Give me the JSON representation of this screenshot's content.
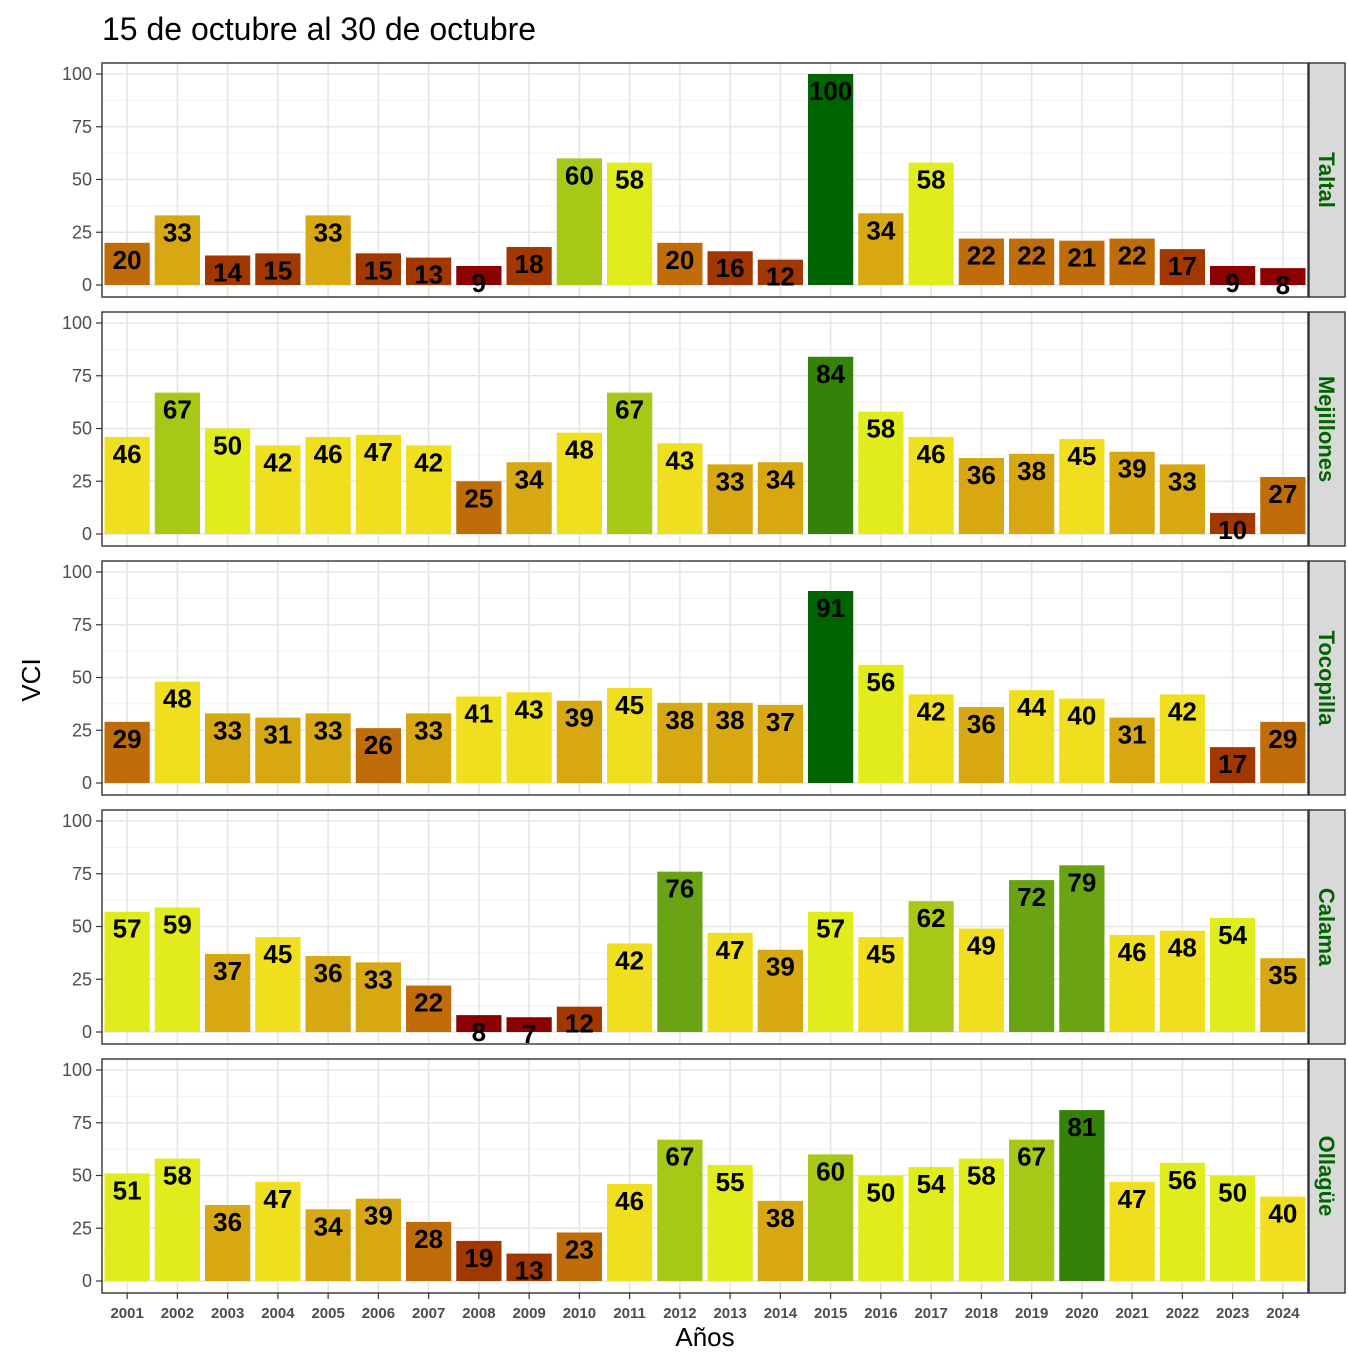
{
  "chart_data": {
    "type": "bar",
    "title": "15 de octubre al 30 de octubre",
    "xlabel": "Años",
    "ylabel": "VCI",
    "ylim": [
      0,
      100
    ],
    "yticks": [
      "0",
      "25",
      "50",
      "75",
      "100"
    ],
    "grid": true,
    "categories": [
      "2001",
      "2002",
      "2003",
      "2004",
      "2005",
      "2006",
      "2007",
      "2008",
      "2009",
      "2010",
      "2011",
      "2012",
      "2013",
      "2014",
      "2015",
      "2016",
      "2017",
      "2018",
      "2019",
      "2020",
      "2021",
      "2022",
      "2023",
      "2024"
    ],
    "series": [
      {
        "name": "Taltal",
        "values": [
          20,
          33,
          14,
          15,
          33,
          15,
          13,
          9,
          18,
          60,
          58,
          20,
          16,
          12,
          100,
          34,
          58,
          22,
          22,
          21,
          22,
          17,
          9,
          8
        ]
      },
      {
        "name": "Mejillones",
        "values": [
          46,
          67,
          50,
          42,
          46,
          47,
          42,
          25,
          34,
          48,
          67,
          43,
          33,
          34,
          84,
          58,
          46,
          36,
          38,
          45,
          39,
          33,
          10,
          27
        ]
      },
      {
        "name": "Tocopilla",
        "values": [
          29,
          48,
          33,
          31,
          33,
          26,
          33,
          41,
          43,
          39,
          45,
          38,
          38,
          37,
          91,
          56,
          42,
          36,
          44,
          40,
          31,
          42,
          17,
          29
        ]
      },
      {
        "name": "Calama",
        "values": [
          57,
          59,
          37,
          45,
          36,
          33,
          22,
          8,
          7,
          12,
          42,
          76,
          47,
          39,
          57,
          45,
          62,
          49,
          72,
          79,
          46,
          48,
          54,
          35
        ]
      },
      {
        "name": "Ollagüe",
        "values": [
          51,
          58,
          36,
          47,
          34,
          39,
          28,
          19,
          13,
          23,
          46,
          67,
          55,
          38,
          60,
          50,
          54,
          58,
          67,
          81,
          47,
          56,
          50,
          40
        ]
      }
    ],
    "color_scale": [
      {
        "min": 0,
        "color": "#8b0000"
      },
      {
        "min": 10,
        "color": "#a23800"
      },
      {
        "min": 20,
        "color": "#c06c08"
      },
      {
        "min": 30,
        "color": "#d8a812"
      },
      {
        "min": 40,
        "color": "#f0df1e"
      },
      {
        "min": 50,
        "color": "#e0ec1c"
      },
      {
        "min": 60,
        "color": "#a8c818"
      },
      {
        "min": 70,
        "color": "#6aa414"
      },
      {
        "min": 80,
        "color": "#348208"
      },
      {
        "min": 90,
        "color": "#006400"
      }
    ],
    "strip_label_color": "#006400"
  }
}
